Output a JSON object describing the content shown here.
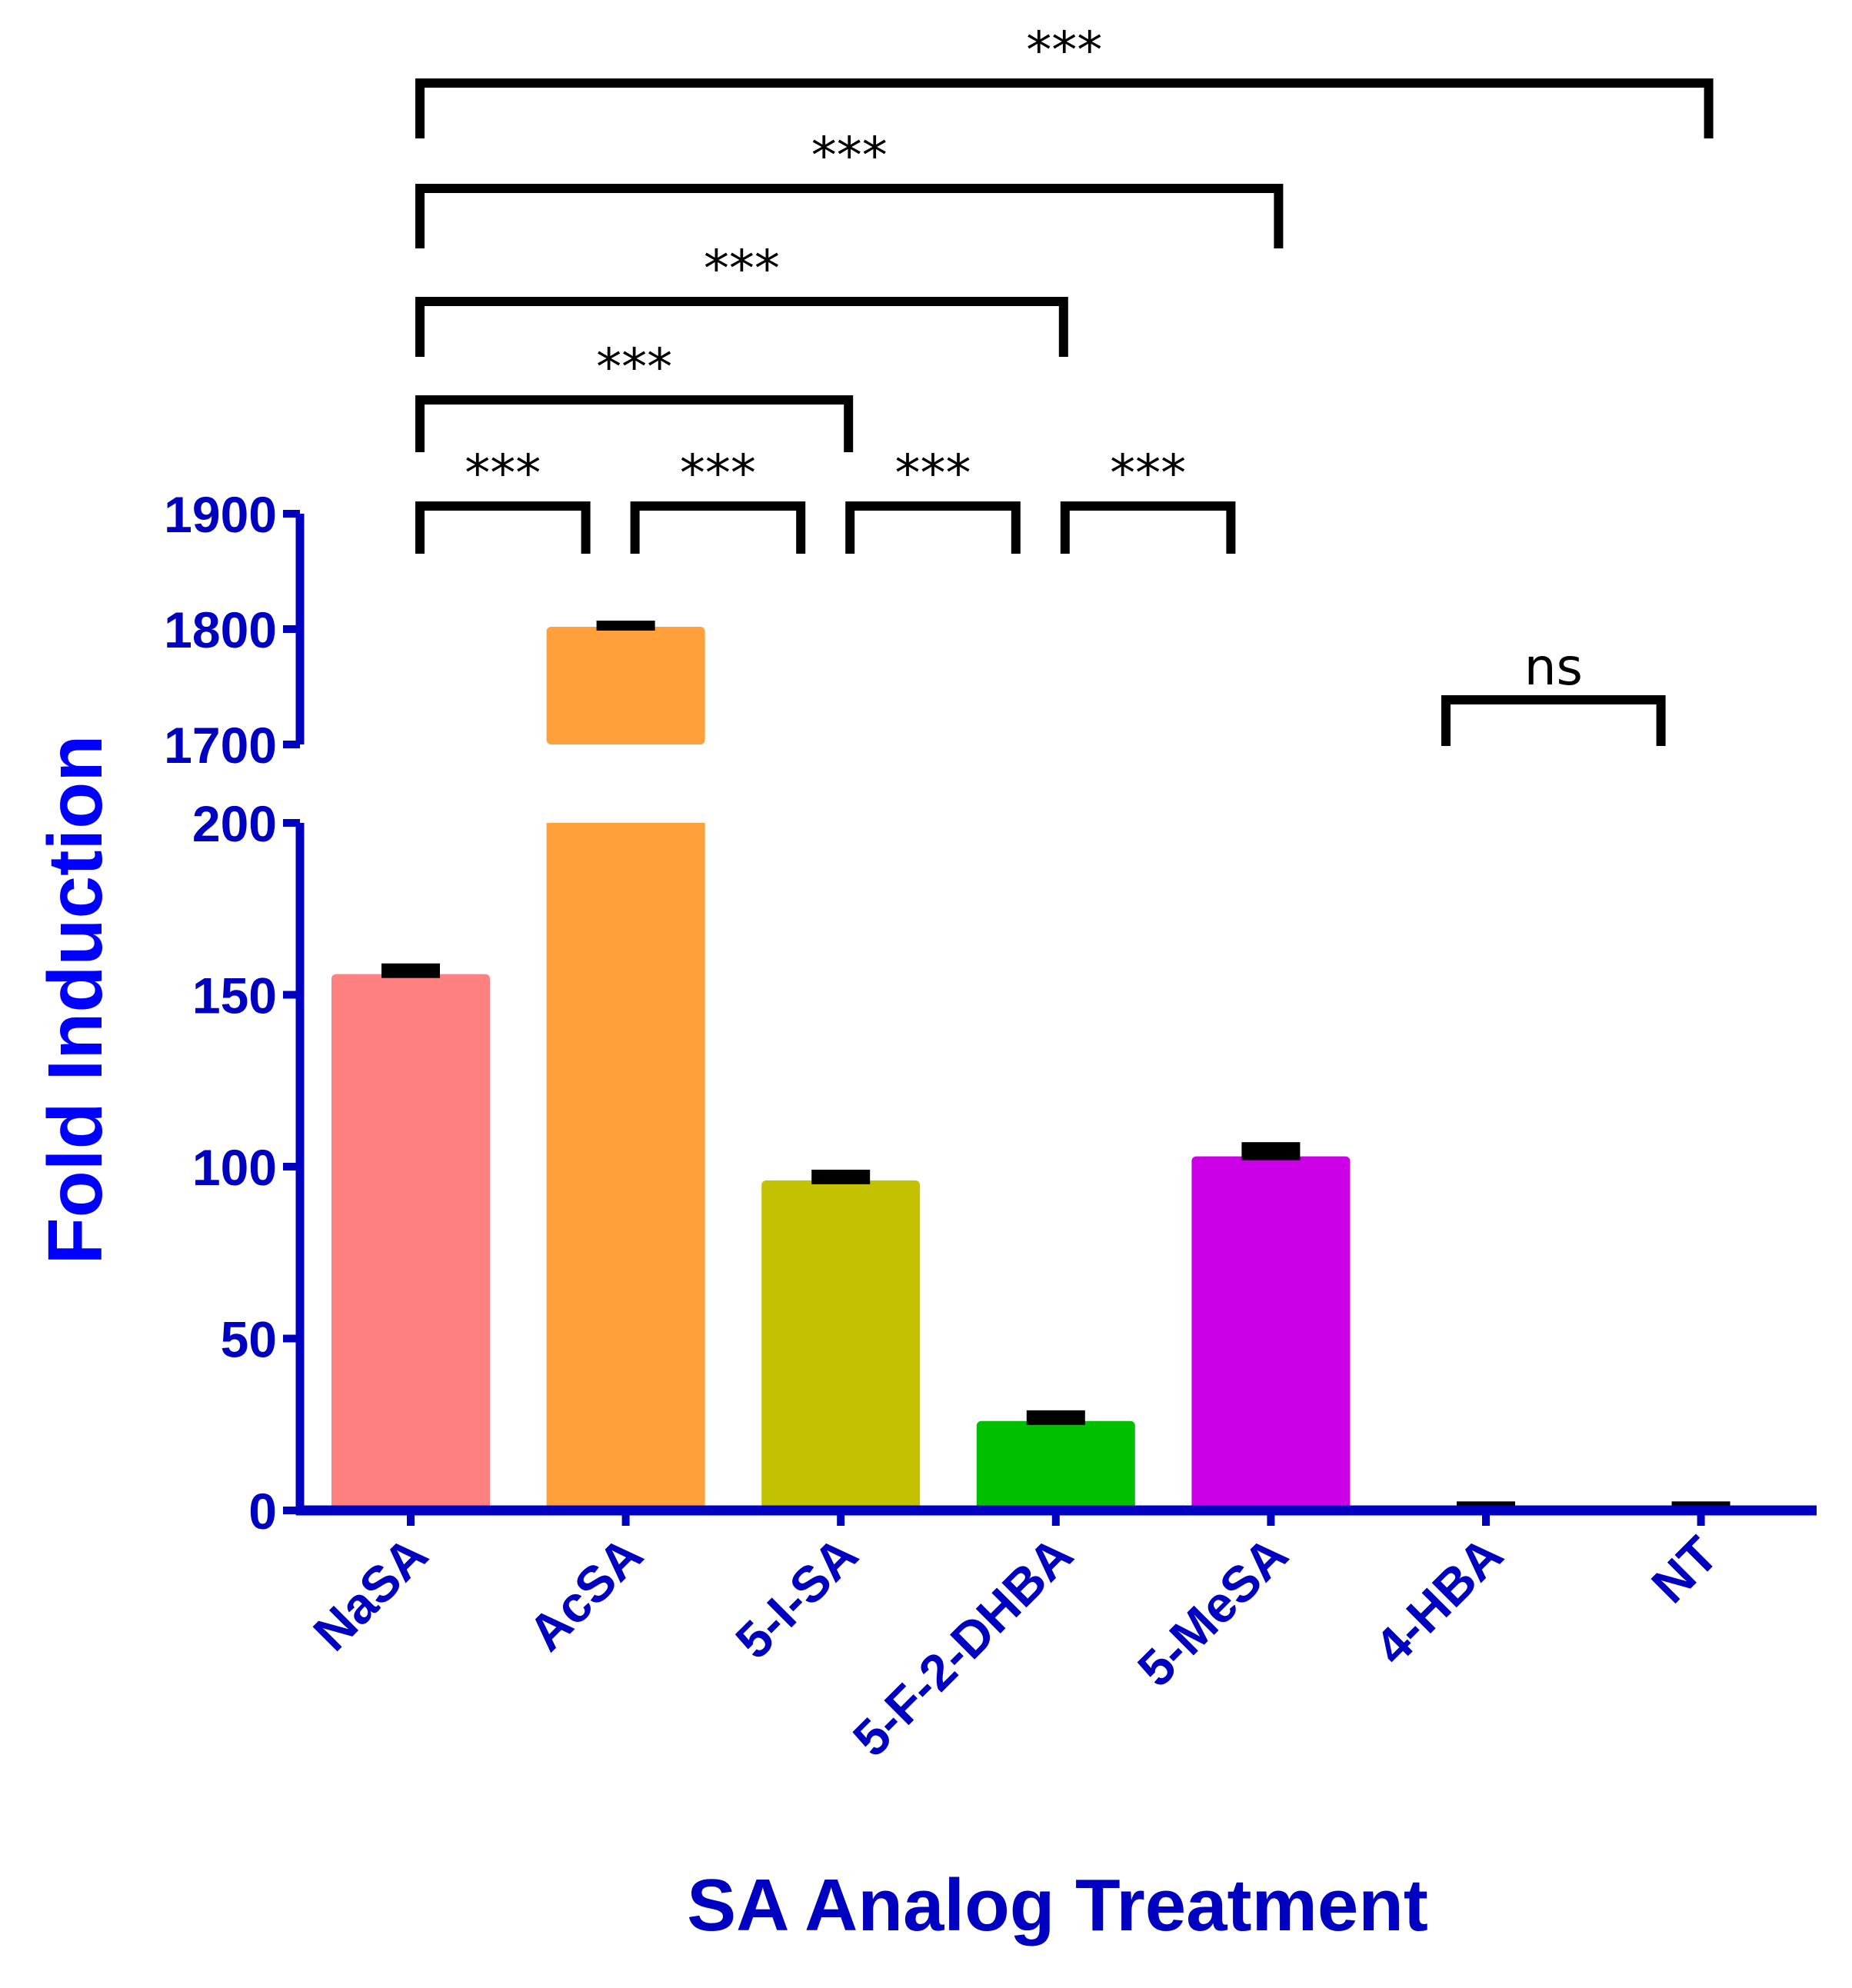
{
  "chart_data": {
    "type": "bar",
    "title": "",
    "xlabel": "SA Analog Treatment",
    "ylabel": "Fold Induction",
    "categories": [
      "NaSA",
      "AcSA",
      "5-I-SA",
      "5-F-2-DHBA",
      "5-MeSA",
      "4-HBA",
      "NT"
    ],
    "values": [
      156,
      1802,
      96,
      26,
      103,
      1,
      1
    ],
    "errors": [
      2,
      2,
      2,
      2,
      3,
      0.5,
      0.5
    ],
    "colors": [
      "#ff8080",
      "#ffa03a",
      "#c2c200",
      "#00bf00",
      "#cc00e6",
      "#f08090",
      "#2d9bf0"
    ],
    "axis_segments": [
      {
        "name": "lower",
        "ylim": [
          0,
          200
        ],
        "ticks": [
          0,
          50,
          100,
          150,
          200
        ],
        "tick_labels": [
          "0",
          "50",
          "100",
          "150",
          "200"
        ]
      },
      {
        "name": "upper",
        "ylim": [
          1700,
          1900
        ],
        "ticks": [
          1700,
          1800,
          1900
        ],
        "tick_labels": [
          "1700",
          "1800",
          "1900"
        ]
      }
    ],
    "axis_color": "#0000c0",
    "title_color": "#0000ff",
    "grid": false,
    "legend": "none",
    "significance": [
      {
        "from": "NaSA",
        "to": "NT",
        "label": "***",
        "tier": 5
      },
      {
        "from": "NaSA",
        "to": "5-MeSA",
        "label": "***",
        "tier": 4
      },
      {
        "from": "NaSA",
        "to": "5-F-2-DHBA",
        "label": "***",
        "tier": 3
      },
      {
        "from": "NaSA",
        "to": "5-I-SA",
        "label": "***",
        "tier": 2
      },
      {
        "from": "NaSA",
        "to": "AcSA",
        "label": "***",
        "tier": 1
      },
      {
        "from": "AcSA",
        "to": "5-I-SA",
        "label": "***",
        "tier": 1
      },
      {
        "from": "5-I-SA",
        "to": "5-F-2-DHBA",
        "label": "***",
        "tier": 1
      },
      {
        "from": "5-F-2-DHBA",
        "to": "5-MeSA",
        "label": "***",
        "tier": 1
      },
      {
        "from": "4-HBA",
        "to": "NT",
        "label": "ns",
        "tier": 0
      }
    ]
  }
}
